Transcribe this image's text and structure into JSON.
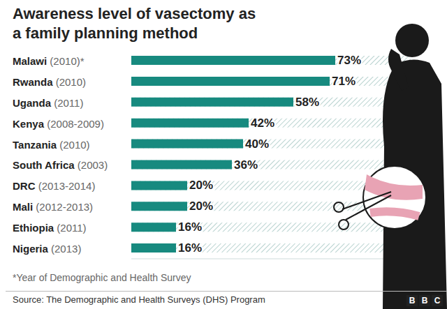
{
  "chart_data": {
    "type": "bar",
    "orientation": "horizontal",
    "title": "Awareness level of vasectomy as a family planning method",
    "categories": [
      "Malawi (2010)*",
      "Rwanda (2010)",
      "Uganda (2011)",
      "Kenya (2008-2009)",
      "Tanzania (2010)",
      "South Africa (2003)",
      "DRC (2013-2014)",
      "Mali (2012-2013)",
      "Ethiopia (2011)",
      "Nigeria (2013)"
    ],
    "values": [
      73,
      71,
      58,
      42,
      40,
      36,
      20,
      20,
      16,
      16
    ],
    "value_labels": [
      "73%",
      "71%",
      "58%",
      "42%",
      "40%",
      "36%",
      "20%",
      "20%",
      "16%",
      "16%"
    ],
    "xlim": [
      0,
      100
    ],
    "color": "#178a7f",
    "data_labels": true,
    "tick_labels": "y",
    "grid": false,
    "footnote": "*Year of Demographic and Health Survey",
    "source": "Source: The Demographic and Health Surveys (DHS) Program",
    "branding": "BBC"
  }
}
